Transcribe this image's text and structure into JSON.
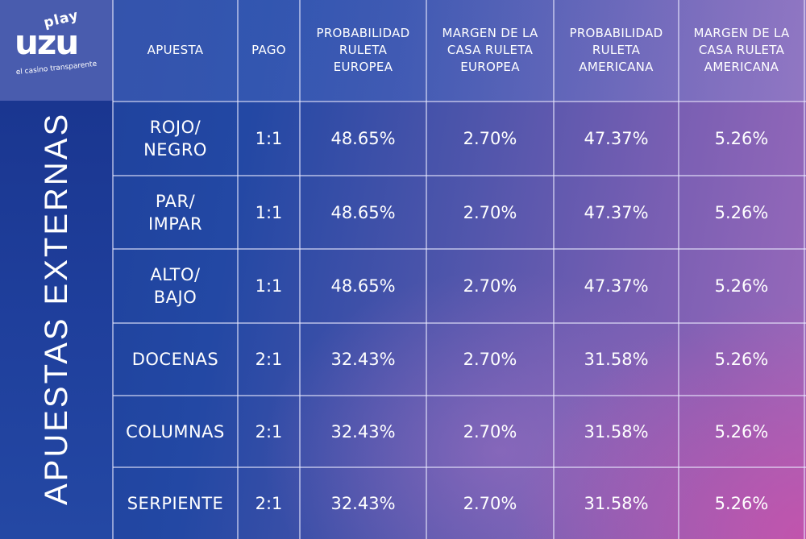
{
  "brand": {
    "logo_top": "play",
    "logo_main": "uzu",
    "tagline": "el casino transparente"
  },
  "side_label": "APUESTAS EXTERNAS",
  "columns": [
    "APUESTA",
    "PAGO",
    "PROBABILIDAD\nRULETA\nEUROPEA",
    "MARGEN DE LA\nCASA RULETA\nEUROPEA",
    "PROBABILIDAD\nRULETA\nAMERICANA",
    "MARGEN DE LA\nCASA RULETA\nAMERICANA"
  ],
  "rows": [
    {
      "bet": "ROJO/\nNEGRO",
      "pay": "1:1",
      "prob_eu": "48.65%",
      "edge_eu": "2.70%",
      "prob_am": "47.37%",
      "edge_am": "5.26%"
    },
    {
      "bet": "PAR/\nIMPAR",
      "pay": "1:1",
      "prob_eu": "48.65%",
      "edge_eu": "2.70%",
      "prob_am": "47.37%",
      "edge_am": "5.26%"
    },
    {
      "bet": "ALTO/\nBAJO",
      "pay": "1:1",
      "prob_eu": "48.65%",
      "edge_eu": "2.70%",
      "prob_am": "47.37%",
      "edge_am": "5.26%"
    },
    {
      "bet": "DOCENAS",
      "pay": "2:1",
      "prob_eu": "32.43%",
      "edge_eu": "2.70%",
      "prob_am": "31.58%",
      "edge_am": "5.26%"
    },
    {
      "bet": "COLUMNAS",
      "pay": "2:1",
      "prob_eu": "32.43%",
      "edge_eu": "2.70%",
      "prob_am": "31.58%",
      "edge_am": "5.26%"
    },
    {
      "bet": "SERPIENTE",
      "pay": "2:1",
      "prob_eu": "32.43%",
      "edge_eu": "2.70%",
      "prob_am": "31.58%",
      "edge_am": "5.26%"
    }
  ]
}
